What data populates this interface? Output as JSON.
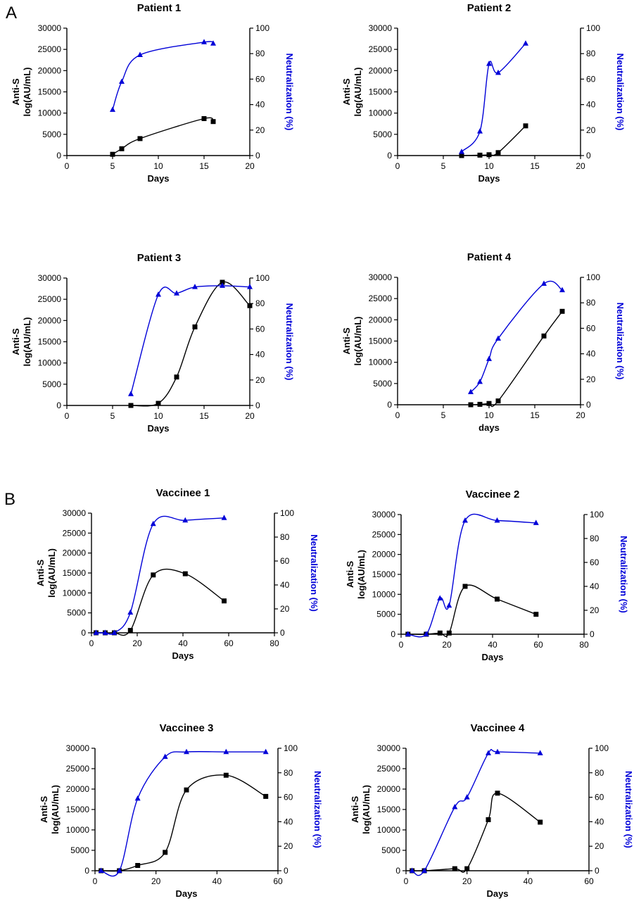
{
  "colors": {
    "anti_s": "#000000",
    "neutralization": "#0000d8"
  },
  "panels": [
    {
      "label": "A"
    },
    {
      "label": "B"
    }
  ],
  "chart_data": [
    {
      "type": "line",
      "title": "Patient 1",
      "xlabel": "Days",
      "ylabel_lines": [
        "Anti-S",
        "log(AU/mL)"
      ],
      "y2label": "Neutralization (%)",
      "xlim": [
        0,
        20
      ],
      "xticks": [
        "0",
        "5",
        "10",
        "15",
        "20"
      ],
      "ylim": [
        0,
        30000
      ],
      "yticks": [
        "0",
        "5000",
        "10000",
        "15000",
        "20000",
        "25000",
        "30000"
      ],
      "y2lim": [
        0,
        100
      ],
      "y2ticks": [
        "0",
        "20",
        "40",
        "60",
        "80",
        "100"
      ],
      "series": [
        {
          "axis": "left",
          "marker": "square",
          "color": "#000000",
          "x": [
            5,
            6,
            8,
            15,
            16
          ],
          "y": [
            300,
            1600,
            4000,
            8700,
            8000
          ]
        },
        {
          "axis": "right",
          "marker": "triangle",
          "color": "#0000d8",
          "x": [
            5,
            6,
            8,
            15,
            16
          ],
          "y": [
            36,
            58,
            79,
            89,
            88
          ]
        }
      ]
    },
    {
      "type": "line",
      "title": "Patient 2",
      "xlabel": "Days",
      "ylabel_lines": [
        "Anti-S",
        "log(AU/mL)"
      ],
      "y2label": "Neutralization (%)",
      "xlim": [
        0,
        20
      ],
      "xticks": [
        "0",
        "5",
        "10",
        "15",
        "20"
      ],
      "ylim": [
        0,
        30000
      ],
      "yticks": [
        "0",
        "5000",
        "10000",
        "15000",
        "20000",
        "25000",
        "30000"
      ],
      "y2lim": [
        0,
        100
      ],
      "y2ticks": [
        "0",
        "20",
        "40",
        "60",
        "80",
        "100"
      ],
      "series": [
        {
          "axis": "left",
          "marker": "square",
          "color": "#000000",
          "x": [
            7,
            9,
            10,
            11,
            14
          ],
          "y": [
            0,
            100,
            200,
            700,
            7000
          ]
        },
        {
          "axis": "right",
          "marker": "triangle",
          "color": "#0000d8",
          "x": [
            7,
            9,
            10,
            11,
            14
          ],
          "y": [
            3,
            19,
            72,
            65,
            88
          ]
        }
      ]
    },
    {
      "type": "line",
      "title": "Patient 3",
      "xlabel": "Days",
      "ylabel_lines": [
        "Anti-S",
        "log(AU/mL)"
      ],
      "y2label": "Neutralization (%)",
      "xlim": [
        0,
        20
      ],
      "xticks": [
        "0",
        "5",
        "10",
        "15",
        "20"
      ],
      "ylim": [
        0,
        30000
      ],
      "yticks": [
        "0",
        "5000",
        "10000",
        "15000",
        "20000",
        "25000",
        "30000"
      ],
      "y2lim": [
        0,
        100
      ],
      "y2ticks": [
        "0",
        "20",
        "40",
        "60",
        "80",
        "100"
      ],
      "series": [
        {
          "axis": "left",
          "marker": "square",
          "color": "#000000",
          "x": [
            7,
            10,
            12,
            14,
            17,
            20
          ],
          "y": [
            0,
            500,
            6700,
            18500,
            29000,
            23500
          ]
        },
        {
          "axis": "right",
          "marker": "triangle",
          "color": "#0000d8",
          "x": [
            7,
            10,
            12,
            14,
            17,
            20
          ],
          "y": [
            9,
            87,
            88,
            93,
            94,
            93
          ]
        }
      ]
    },
    {
      "type": "line",
      "title": "Patient 4",
      "xlabel": "days",
      "ylabel_lines": [
        "Anti-S",
        "log(AU/mL)"
      ],
      "y2label": "Neutralization (%)",
      "xlim": [
        0,
        20
      ],
      "xticks": [
        "0",
        "5",
        "10",
        "15",
        "20"
      ],
      "ylim": [
        0,
        30000
      ],
      "yticks": [
        "0",
        "5000",
        "10000",
        "15000",
        "20000",
        "25000",
        "30000"
      ],
      "y2lim": [
        0,
        100
      ],
      "y2ticks": [
        "0",
        "20",
        "40",
        "60",
        "80",
        "100"
      ],
      "series": [
        {
          "axis": "left",
          "marker": "square",
          "color": "#000000",
          "x": [
            8,
            9,
            10,
            11,
            16,
            18
          ],
          "y": [
            0,
            100,
            300,
            900,
            16200,
            22000
          ]
        },
        {
          "axis": "right",
          "marker": "triangle",
          "color": "#0000d8",
          "x": [
            8,
            9,
            10,
            11,
            16,
            18
          ],
          "y": [
            10,
            18,
            36,
            52,
            95,
            90
          ]
        }
      ]
    },
    {
      "type": "line",
      "title": "Vaccinee 1",
      "xlabel": "Days",
      "ylabel_lines": [
        "Anti-S",
        "log(AU/mL)"
      ],
      "y2label": "Neutralization (%)",
      "xlim": [
        0,
        80
      ],
      "xticks": [
        "0",
        "20",
        "40",
        "60",
        "80"
      ],
      "ylim": [
        0,
        30000
      ],
      "yticks": [
        "0",
        "5000",
        "10000",
        "15000",
        "20000",
        "25000",
        "30000"
      ],
      "y2lim": [
        0,
        100
      ],
      "y2ticks": [
        "0",
        "20",
        "40",
        "60",
        "80",
        "100"
      ],
      "series": [
        {
          "axis": "left",
          "marker": "square",
          "color": "#000000",
          "x": [
            2,
            6,
            10,
            17,
            27,
            41,
            58
          ],
          "y": [
            0,
            0,
            0,
            600,
            14500,
            14800,
            8000
          ]
        },
        {
          "axis": "right",
          "marker": "triangle",
          "color": "#0000d8",
          "x": [
            2,
            6,
            10,
            17,
            27,
            41,
            58
          ],
          "y": [
            0,
            0,
            0,
            17,
            91,
            94,
            96
          ]
        }
      ]
    },
    {
      "type": "line",
      "title": "Vaccinee 2",
      "xlabel": "Days",
      "ylabel_lines": [
        "Anti-S",
        "log(AU/mL)"
      ],
      "y2label": "Neutralization (%)",
      "xlim": [
        0,
        80
      ],
      "xticks": [
        "0",
        "20",
        "40",
        "60",
        "80"
      ],
      "ylim": [
        0,
        30000
      ],
      "yticks": [
        "0",
        "5000",
        "10000",
        "15000",
        "20000",
        "25000",
        "30000"
      ],
      "y2lim": [
        0,
        100
      ],
      "y2ticks": [
        "0",
        "20",
        "40",
        "60",
        "80",
        "100"
      ],
      "series": [
        {
          "axis": "left",
          "marker": "square",
          "color": "#000000",
          "x": [
            3,
            11,
            17,
            21,
            28,
            42,
            59
          ],
          "y": [
            0,
            0,
            300,
            300,
            12000,
            8800,
            5000
          ]
        },
        {
          "axis": "right",
          "marker": "triangle",
          "color": "#0000d8",
          "x": [
            3,
            11,
            17,
            21,
            28,
            42,
            59
          ],
          "y": [
            0,
            0,
            30,
            24,
            95,
            95,
            93
          ]
        }
      ]
    },
    {
      "type": "line",
      "title": "Vaccinee 3",
      "xlabel": "Days",
      "ylabel_lines": [
        "Anti-S",
        "log(AU/mL)"
      ],
      "y2label": "Neutralization (%)",
      "xlim": [
        0,
        60
      ],
      "xticks": [
        "0",
        "20",
        "40",
        "60"
      ],
      "ylim": [
        0,
        30000
      ],
      "yticks": [
        "0",
        "5000",
        "10000",
        "15000",
        "20000",
        "25000",
        "30000"
      ],
      "y2lim": [
        0,
        100
      ],
      "y2ticks": [
        "0",
        "20",
        "40",
        "60",
        "80",
        "100"
      ],
      "series": [
        {
          "axis": "left",
          "marker": "square",
          "color": "#000000",
          "x": [
            2,
            8,
            14,
            23,
            30,
            43,
            56
          ],
          "y": [
            0,
            0,
            1300,
            4500,
            19800,
            23400,
            18200
          ]
        },
        {
          "axis": "right",
          "marker": "triangle",
          "color": "#0000d8",
          "x": [
            2,
            8,
            14,
            23,
            30,
            43,
            56
          ],
          "y": [
            0,
            0,
            59,
            93,
            97,
            97,
            97
          ]
        }
      ]
    },
    {
      "type": "line",
      "title": "Vaccinee 4",
      "xlabel": "Days",
      "ylabel_lines": [
        "Anti-S",
        "log(AU/mL)"
      ],
      "y2label": "Neutralization (%)",
      "xlim": [
        0,
        60
      ],
      "xticks": [
        "0",
        "20",
        "40",
        "60"
      ],
      "ylim": [
        0,
        30000
      ],
      "yticks": [
        "0",
        "5000",
        "10000",
        "15000",
        "20000",
        "25000",
        "30000"
      ],
      "y2lim": [
        0,
        100
      ],
      "y2ticks": [
        "0",
        "20",
        "40",
        "60",
        "80",
        "100"
      ],
      "series": [
        {
          "axis": "left",
          "marker": "square",
          "color": "#000000",
          "x": [
            2,
            6,
            16,
            20,
            27,
            30,
            44
          ],
          "y": [
            0,
            0,
            500,
            500,
            12500,
            19000,
            11900
          ]
        },
        {
          "axis": "right",
          "marker": "triangle",
          "color": "#0000d8",
          "x": [
            2,
            6,
            16,
            20,
            27,
            30,
            44
          ],
          "y": [
            0,
            0,
            52,
            60,
            96,
            97,
            96
          ]
        }
      ]
    }
  ]
}
